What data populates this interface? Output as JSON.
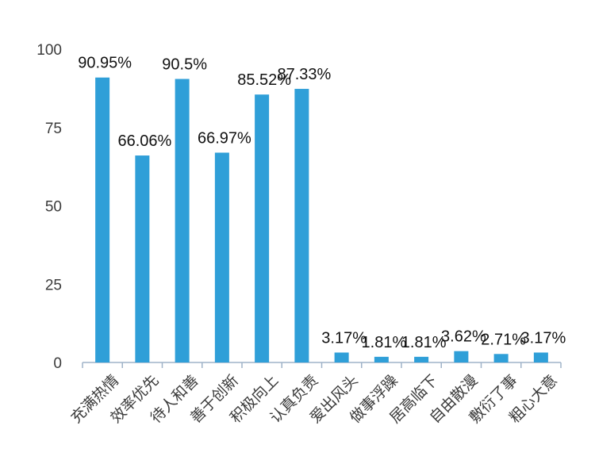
{
  "chart_data": {
    "type": "bar",
    "title": "",
    "xlabel": "",
    "ylabel": "",
    "ylim": [
      0,
      100
    ],
    "yticks": [
      0,
      25,
      50,
      75,
      100
    ],
    "grid": false,
    "bar_color": "#2f9fd8",
    "axis_color": "#9fb3c8",
    "categories": [
      "充满热情",
      "效率优先",
      "待人和善",
      "善于创新",
      "积极向上",
      "认真负责",
      "爱出风头",
      "做事浮躁",
      "居高临下",
      "自由散漫",
      "敷衍了事",
      "粗心大意"
    ],
    "values": [
      90.95,
      66.06,
      90.5,
      66.97,
      85.52,
      87.33,
      3.17,
      1.81,
      1.81,
      3.62,
      2.71,
      3.17
    ],
    "data_labels": [
      "90.95%",
      "66.06%",
      "90.5%",
      "66.97%",
      "85.52%",
      "87.33%",
      "3.17%",
      "1.81%",
      "1.81%",
      "3.62%",
      "2.71%",
      "3.17%"
    ]
  }
}
